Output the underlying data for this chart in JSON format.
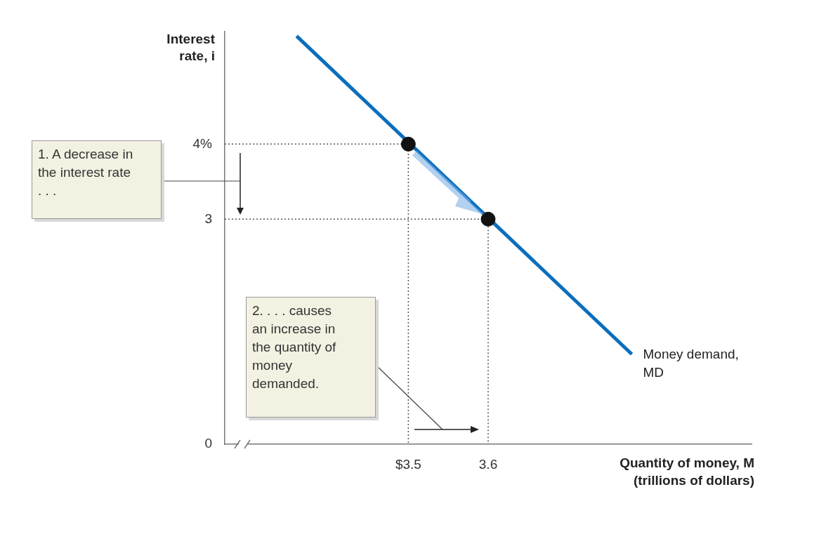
{
  "chart_data": {
    "type": "line",
    "xlabel": "Quantity of money, M (trillions of dollars)",
    "ylabel": "Interest rate, i",
    "xlim": [
      3.27,
      3.93
    ],
    "ylim": [
      0,
      5.5
    ],
    "xticks": [
      {
        "value": 3.5,
        "label": "$3.5"
      },
      3.6
    ],
    "yticks": [
      0,
      3,
      {
        "value": 4,
        "label": "4%"
      }
    ],
    "grid": false,
    "legend": false,
    "series": [
      {
        "name": "Money demand, MD",
        "color": "#0a6ebd",
        "x": [
          3.36,
          3.78
        ],
        "values": [
          5.44,
          1.2
        ],
        "marker": "none",
        "line_style": "solid"
      },
      {
        "color": "#555555",
        "x": [
          3.27,
          3.5,
          3.5
        ],
        "values": [
          4,
          4,
          0
        ],
        "marker": "none",
        "line_style": "dotted"
      },
      {
        "color": "#555555",
        "x": [
          3.27,
          3.6,
          3.6
        ],
        "values": [
          3,
          3,
          0
        ],
        "marker": "none",
        "line_style": "dotted"
      },
      {
        "type": "scatter",
        "color": "#111111",
        "x": [
          3.5,
          3.6
        ],
        "values": [
          4,
          3
        ],
        "marker": "circle"
      }
    ],
    "annotations": [
      "1. A decrease in the interest rate . . .",
      "2. . . . causes an increase in the quantity of money demanded."
    ]
  }
}
